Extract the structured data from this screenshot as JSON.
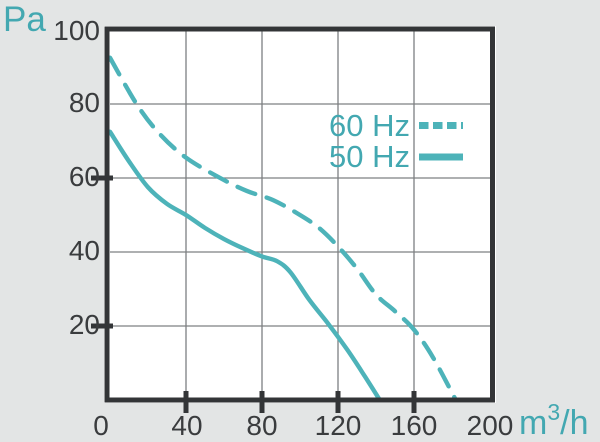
{
  "chart_data": {
    "type": "line",
    "title": "",
    "xlabel": "m³/h",
    "ylabel": "Pa",
    "xlim": [
      0,
      200
    ],
    "ylim": [
      0,
      100
    ],
    "x_ticks": [
      0,
      40,
      80,
      120,
      160,
      200
    ],
    "y_ticks_top_to_bottom": [
      100,
      80,
      60,
      40,
      20
    ],
    "axis_tick_marks": {
      "x": [
        40,
        80,
        120,
        160
      ],
      "y": [
        60,
        20
      ]
    },
    "grid": true,
    "legend_position": "upper right inside plot",
    "series": [
      {
        "name": "60 Hz",
        "style": "dashed",
        "points": [
          [
            0,
            92.5
          ],
          [
            14,
            80
          ],
          [
            26,
            72
          ],
          [
            40,
            65.5
          ],
          [
            58,
            60
          ],
          [
            72,
            56.5
          ],
          [
            86,
            54
          ],
          [
            100,
            50
          ],
          [
            110,
            46.5
          ],
          [
            120,
            41.5
          ],
          [
            130,
            35.5
          ],
          [
            140,
            28.5
          ],
          [
            150,
            24
          ],
          [
            160,
            19
          ],
          [
            170,
            11.5
          ],
          [
            182,
            0
          ]
        ]
      },
      {
        "name": "50 Hz",
        "style": "solid",
        "points": [
          [
            0,
            72.5
          ],
          [
            10,
            64.5
          ],
          [
            20,
            57.5
          ],
          [
            30,
            53
          ],
          [
            40,
            50
          ],
          [
            50,
            46.5
          ],
          [
            60,
            43.5
          ],
          [
            70,
            41
          ],
          [
            80,
            38.8
          ],
          [
            88,
            37.5
          ],
          [
            95,
            34.5
          ],
          [
            105,
            27
          ],
          [
            115,
            20.5
          ],
          [
            125,
            13.5
          ],
          [
            134,
            6.5
          ],
          [
            142,
            0
          ]
        ]
      }
    ]
  },
  "labels": {
    "y_unit": "Pa",
    "x_unit_base": "m",
    "x_unit_exp": "3",
    "x_unit_rest": "/h"
  },
  "colors": {
    "background": "#e3e5e5",
    "plot_background": "#ffffff",
    "axis": "#333537",
    "grid": "#7d8082",
    "tick_text": "#3a3c3e",
    "accent_text": "#43a8b1",
    "curve": "#4db3b9"
  }
}
